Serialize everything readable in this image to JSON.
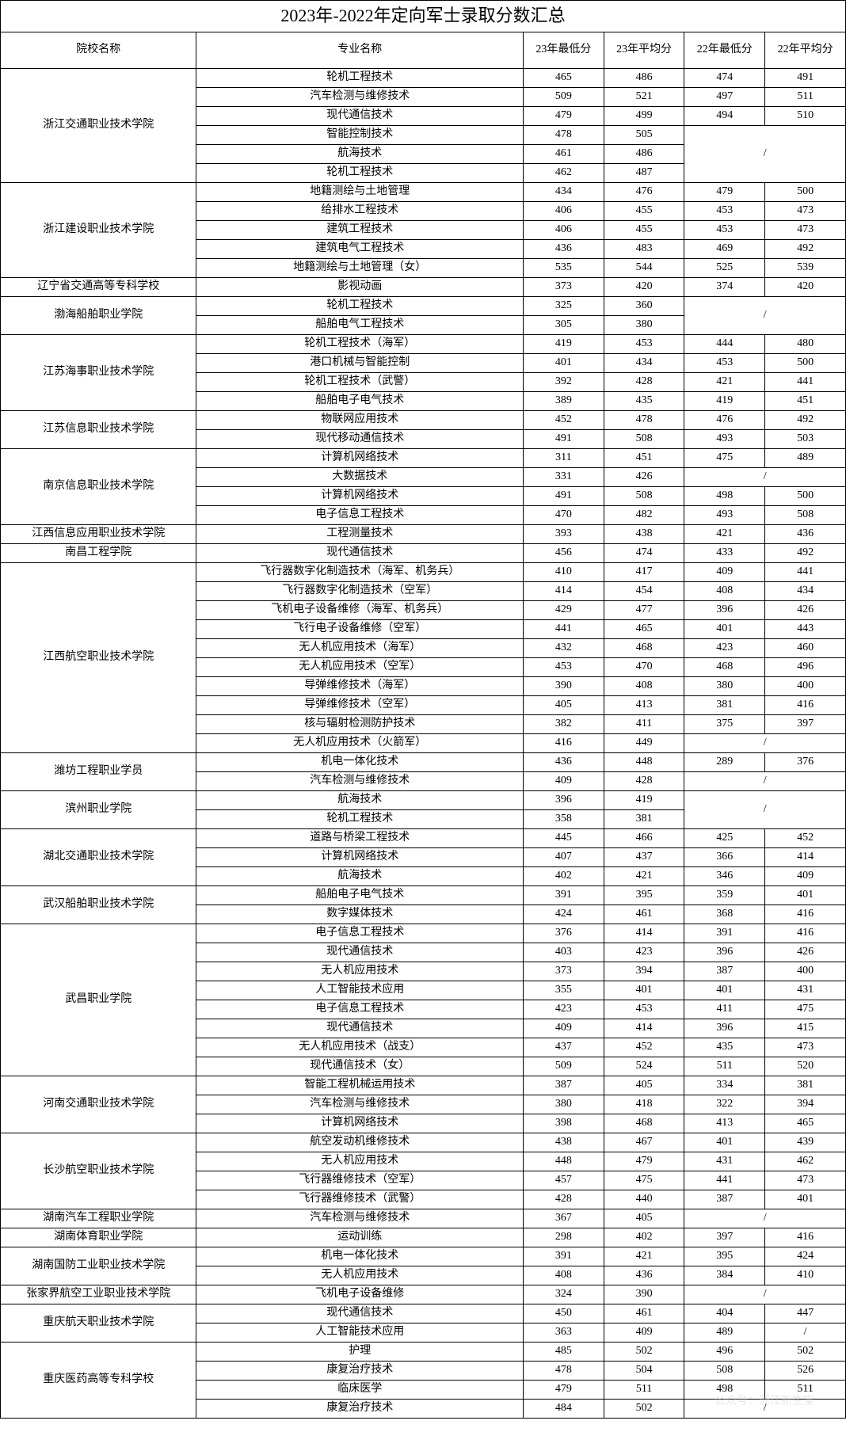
{
  "title": "2023年-2022年定向军士录取分数汇总",
  "headers": {
    "school": "院校名称",
    "major": "专业名称",
    "min23": "23年最低分",
    "avg23": "23年平均分",
    "min22": "22年最低分",
    "avg22": "22年平均分"
  },
  "col_widths": {
    "school": 180,
    "major": 300,
    "score": 74
  },
  "colors": {
    "border": "#000000",
    "bg": "#ffffff",
    "text": "#000000",
    "watermark": "#cccccc"
  },
  "fonts": {
    "title_size": 22,
    "header_size": 14,
    "cell_size": 14,
    "family": "SimSun"
  },
  "watermark_text": "公众号：浙江新生宝",
  "schools": [
    {
      "name": "浙江交通职业技术学院",
      "rows": [
        {
          "major": "轮机工程技术",
          "min23": "465",
          "avg23": "486",
          "min22": "474",
          "avg22": "491"
        },
        {
          "major": "汽车检测与维修技术",
          "min23": "509",
          "avg23": "521",
          "min22": "497",
          "avg22": "511"
        },
        {
          "major": "现代通信技术",
          "min23": "479",
          "avg23": "499",
          "min22": "494",
          "avg22": "510"
        },
        {
          "major": "智能控制技术",
          "min23": "478",
          "avg23": "505",
          "min22": "",
          "avg22": "",
          "merge22": true,
          "merge22_rows": 3,
          "slash22": true
        },
        {
          "major": "航海技术",
          "min23": "461",
          "avg23": "486",
          "skip22": true
        },
        {
          "major": "轮机工程技术",
          "min23": "462",
          "avg23": "487",
          "skip22": true
        }
      ]
    },
    {
      "name": "浙江建设职业技术学院",
      "rows": [
        {
          "major": "地籍测绘与土地管理",
          "min23": "434",
          "avg23": "476",
          "min22": "479",
          "avg22": "500"
        },
        {
          "major": "给排水工程技术",
          "min23": "406",
          "avg23": "455",
          "min22": "453",
          "avg22": "473"
        },
        {
          "major": "建筑工程技术",
          "min23": "406",
          "avg23": "455",
          "min22": "453",
          "avg22": "473"
        },
        {
          "major": "建筑电气工程技术",
          "min23": "436",
          "avg23": "483",
          "min22": "469",
          "avg22": "492"
        },
        {
          "major": "地籍测绘与土地管理（女）",
          "min23": "535",
          "avg23": "544",
          "min22": "525",
          "avg22": "539"
        }
      ]
    },
    {
      "name": "辽宁省交通高等专科学校",
      "rows": [
        {
          "major": "影视动画",
          "min23": "373",
          "avg23": "420",
          "min22": "374",
          "avg22": "420"
        }
      ]
    },
    {
      "name": "渤海船舶职业学院",
      "rows": [
        {
          "major": "轮机工程技术",
          "min23": "325",
          "avg23": "360",
          "min22": "",
          "avg22": "",
          "merge22": true,
          "merge22_rows": 2,
          "slash22": true
        },
        {
          "major": "船舶电气工程技术",
          "min23": "305",
          "avg23": "380",
          "skip22": true
        }
      ]
    },
    {
      "name": "江苏海事职业技术学院",
      "rows": [
        {
          "major": "轮机工程技术（海军）",
          "min23": "419",
          "avg23": "453",
          "min22": "444",
          "avg22": "480"
        },
        {
          "major": "港口机械与智能控制",
          "min23": "401",
          "avg23": "434",
          "min22": "453",
          "avg22": "500"
        },
        {
          "major": "轮机工程技术（武警）",
          "min23": "392",
          "avg23": "428",
          "min22": "421",
          "avg22": "441"
        },
        {
          "major": "船舶电子电气技术",
          "min23": "389",
          "avg23": "435",
          "min22": "419",
          "avg22": "451"
        }
      ]
    },
    {
      "name": "江苏信息职业技术学院",
      "rows": [
        {
          "major": "物联网应用技术",
          "min23": "452",
          "avg23": "478",
          "min22": "476",
          "avg22": "492"
        },
        {
          "major": "现代移动通信技术",
          "min23": "491",
          "avg23": "508",
          "min22": "493",
          "avg22": "503"
        }
      ]
    },
    {
      "name": "南京信息职业技术学院",
      "rows": [
        {
          "major": "计算机网络技术",
          "min23": "311",
          "avg23": "451",
          "min22": "475",
          "avg22": "489"
        },
        {
          "major": "大数据技术",
          "min23": "331",
          "avg23": "426",
          "min22": "",
          "avg22": "",
          "merge22": true,
          "merge22_rows": 1,
          "slash22": true
        },
        {
          "major": "计算机网络技术",
          "min23": "491",
          "avg23": "508",
          "min22": "498",
          "avg22": "500"
        },
        {
          "major": "电子信息工程技术",
          "min23": "470",
          "avg23": "482",
          "min22": "493",
          "avg22": "508"
        }
      ]
    },
    {
      "name": "江西信息应用职业技术学院",
      "rows": [
        {
          "major": "工程测量技术",
          "min23": "393",
          "avg23": "438",
          "min22": "421",
          "avg22": "436"
        }
      ]
    },
    {
      "name": "南昌工程学院",
      "rows": [
        {
          "major": "现代通信技术",
          "min23": "456",
          "avg23": "474",
          "min22": "433",
          "avg22": "492"
        }
      ]
    },
    {
      "name": "江西航空职业技术学院",
      "rows": [
        {
          "major": "飞行器数字化制造技术（海军、机务兵）",
          "min23": "410",
          "avg23": "417",
          "min22": "409",
          "avg22": "441"
        },
        {
          "major": "飞行器数字化制造技术（空军）",
          "min23": "414",
          "avg23": "454",
          "min22": "408",
          "avg22": "434"
        },
        {
          "major": "飞机电子设备维修（海军、机务兵）",
          "min23": "429",
          "avg23": "477",
          "min22": "396",
          "avg22": "426"
        },
        {
          "major": "飞行电子设备维修（空军）",
          "min23": "441",
          "avg23": "465",
          "min22": "401",
          "avg22": "443"
        },
        {
          "major": "无人机应用技术（海军）",
          "min23": "432",
          "avg23": "468",
          "min22": "423",
          "avg22": "460"
        },
        {
          "major": "无人机应用技术（空军）",
          "min23": "453",
          "avg23": "470",
          "min22": "468",
          "avg22": "496"
        },
        {
          "major": "导弹维修技术（海军）",
          "min23": "390",
          "avg23": "408",
          "min22": "380",
          "avg22": "400"
        },
        {
          "major": "导弹维修技术（空军）",
          "min23": "405",
          "avg23": "413",
          "min22": "381",
          "avg22": "416"
        },
        {
          "major": "核与辐射检测防护技术",
          "min23": "382",
          "avg23": "411",
          "min22": "375",
          "avg22": "397"
        },
        {
          "major": "无人机应用技术（火箭军）",
          "min23": "416",
          "avg23": "449",
          "min22": "",
          "avg22": "",
          "merge22": true,
          "merge22_rows": 1,
          "slash22": true
        }
      ]
    },
    {
      "name": "潍坊工程职业学员",
      "rows": [
        {
          "major": "机电一体化技术",
          "min23": "436",
          "avg23": "448",
          "min22": "289",
          "avg22": "376"
        },
        {
          "major": "汽车检测与维修技术",
          "min23": "409",
          "avg23": "428",
          "min22": "",
          "avg22": "",
          "merge22": true,
          "merge22_rows": 1,
          "slash22": true
        }
      ]
    },
    {
      "name": "滨州职业学院",
      "rows": [
        {
          "major": "航海技术",
          "min23": "396",
          "avg23": "419",
          "min22": "",
          "avg22": "",
          "merge22": true,
          "merge22_rows": 2,
          "slash22": true
        },
        {
          "major": "轮机工程技术",
          "min23": "358",
          "avg23": "381",
          "skip22": true
        }
      ]
    },
    {
      "name": "湖北交通职业技术学院",
      "rows": [
        {
          "major": "道路与桥梁工程技术",
          "min23": "445",
          "avg23": "466",
          "min22": "425",
          "avg22": "452"
        },
        {
          "major": "计算机网络技术",
          "min23": "407",
          "avg23": "437",
          "min22": "366",
          "avg22": "414"
        },
        {
          "major": "航海技术",
          "min23": "402",
          "avg23": "421",
          "min22": "346",
          "avg22": "409"
        }
      ]
    },
    {
      "name": "武汉船舶职业技术学院",
      "rows": [
        {
          "major": "船舶电子电气技术",
          "min23": "391",
          "avg23": "395",
          "min22": "359",
          "avg22": "401"
        },
        {
          "major": "数字媒体技术",
          "min23": "424",
          "avg23": "461",
          "min22": "368",
          "avg22": "416"
        }
      ]
    },
    {
      "name": "武昌职业学院",
      "rows": [
        {
          "major": "电子信息工程技术",
          "min23": "376",
          "avg23": "414",
          "min22": "391",
          "avg22": "416"
        },
        {
          "major": "现代通信技术",
          "min23": "403",
          "avg23": "423",
          "min22": "396",
          "avg22": "426"
        },
        {
          "major": "无人机应用技术",
          "min23": "373",
          "avg23": "394",
          "min22": "387",
          "avg22": "400"
        },
        {
          "major": "人工智能技术应用",
          "min23": "355",
          "avg23": "401",
          "min22": "401",
          "avg22": "431"
        },
        {
          "major": "电子信息工程技术",
          "min23": "423",
          "avg23": "453",
          "min22": "411",
          "avg22": "475"
        },
        {
          "major": "现代通信技术",
          "min23": "409",
          "avg23": "414",
          "min22": "396",
          "avg22": "415"
        },
        {
          "major": "无人机应用技术（战支）",
          "min23": "437",
          "avg23": "452",
          "min22": "435",
          "avg22": "473"
        },
        {
          "major": "现代通信技术（女）",
          "min23": "509",
          "avg23": "524",
          "min22": "511",
          "avg22": "520"
        }
      ]
    },
    {
      "name": "河南交通职业技术学院",
      "rows": [
        {
          "major": "智能工程机械运用技术",
          "min23": "387",
          "avg23": "405",
          "min22": "334",
          "avg22": "381"
        },
        {
          "major": "汽车检测与维修技术",
          "min23": "380",
          "avg23": "418",
          "min22": "322",
          "avg22": "394"
        },
        {
          "major": "计算机网络技术",
          "min23": "398",
          "avg23": "468",
          "min22": "413",
          "avg22": "465"
        }
      ]
    },
    {
      "name": "长沙航空职业技术学院",
      "rows": [
        {
          "major": "航空发动机维修技术",
          "min23": "438",
          "avg23": "467",
          "min22": "401",
          "avg22": "439"
        },
        {
          "major": "无人机应用技术",
          "min23": "448",
          "avg23": "479",
          "min22": "431",
          "avg22": "462"
        },
        {
          "major": "飞行器维修技术（空军）",
          "min23": "457",
          "avg23": "475",
          "min22": "441",
          "avg22": "473"
        },
        {
          "major": "飞行器维修技术（武警）",
          "min23": "428",
          "avg23": "440",
          "min22": "387",
          "avg22": "401"
        }
      ]
    },
    {
      "name": "湖南汽车工程职业学院",
      "rows": [
        {
          "major": "汽车检测与维修技术",
          "min23": "367",
          "avg23": "405",
          "min22": "",
          "avg22": "",
          "merge22": true,
          "merge22_rows": 1,
          "slash22": true
        }
      ]
    },
    {
      "name": "湖南体育职业学院",
      "rows": [
        {
          "major": "运动训练",
          "min23": "298",
          "avg23": "402",
          "min22": "397",
          "avg22": "416"
        }
      ]
    },
    {
      "name": "湖南国防工业职业技术学院",
      "rows": [
        {
          "major": "机电一体化技术",
          "min23": "391",
          "avg23": "421",
          "min22": "395",
          "avg22": "424"
        },
        {
          "major": "无人机应用技术",
          "min23": "408",
          "avg23": "436",
          "min22": "384",
          "avg22": "410"
        }
      ]
    },
    {
      "name": "张家界航空工业职业技术学院",
      "rows": [
        {
          "major": "飞机电子设备维修",
          "min23": "324",
          "avg23": "390",
          "min22": "",
          "avg22": "",
          "merge22": true,
          "merge22_rows": 1,
          "slash22": true
        }
      ]
    },
    {
      "name": "重庆航天职业技术学院",
      "rows": [
        {
          "major": "现代通信技术",
          "min23": "450",
          "avg23": "461",
          "min22": "404",
          "avg22": "447"
        },
        {
          "major": "人工智能技术应用",
          "min23": "363",
          "avg23": "409",
          "min22": "489",
          "avg22": "",
          "slash_avg22": true
        }
      ]
    },
    {
      "name": "重庆医药高等专科学校",
      "rows": [
        {
          "major": "护理",
          "min23": "485",
          "avg23": "502",
          "min22": "496",
          "avg22": "502"
        },
        {
          "major": "康复治疗技术",
          "min23": "478",
          "avg23": "504",
          "min22": "508",
          "avg22": "526"
        },
        {
          "major": "临床医学",
          "min23": "479",
          "avg23": "511",
          "min22": "498",
          "avg22": "511"
        },
        {
          "major": "康复治疗技术",
          "min23": "484",
          "avg23": "502",
          "min22": "",
          "avg22": "",
          "merge22": true,
          "merge22_rows": 1,
          "slash22": true
        }
      ]
    }
  ]
}
